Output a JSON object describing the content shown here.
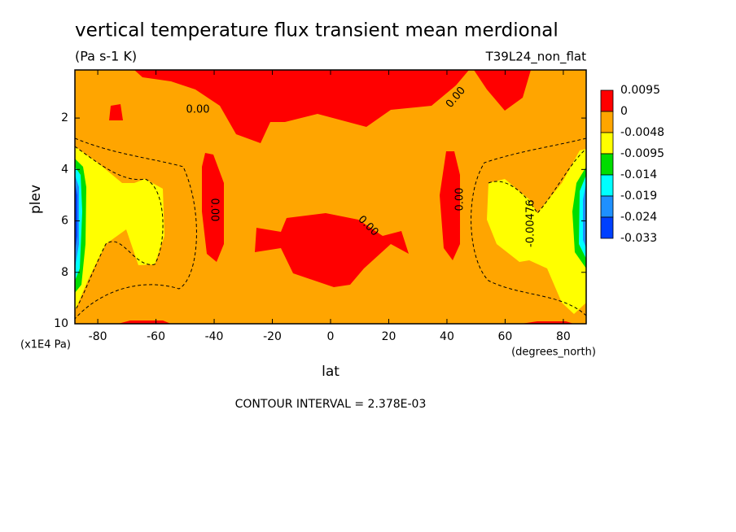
{
  "chart_data": {
    "type": "contour",
    "title": "vertical temperature flux transient mean merdional",
    "subtitle": "(Pa s-1 K)",
    "dataset": "T39L24_non_flat",
    "x_label": "lat",
    "x_units": "(degrees_north)",
    "y_label": "plev",
    "y_units": "(x1E4 Pa)",
    "footer": "CONTOUR INTERVAL = 2.378E-03",
    "xlim": [
      -87.86,
      87.86
    ],
    "xticks": [
      -80,
      -60,
      -40,
      -20,
      0,
      20,
      40,
      60,
      80
    ],
    "ylim": [
      0.13,
      10
    ],
    "yticks": [
      2,
      4,
      6,
      8,
      10
    ],
    "y_inverted": true,
    "colorbar": {
      "levels": [
        0.0095,
        0,
        -0.0048,
        -0.0095,
        -0.014,
        -0.019,
        -0.024,
        -0.033
      ],
      "colors": [
        "#ff0000",
        "#ffa500",
        "#ffff00",
        "#00dd00",
        "#00ffff",
        "#1e90ff",
        "#0040ff"
      ]
    },
    "annotations": [
      {
        "text": "0.00",
        "x": -45.6,
        "y": 1.68
      },
      {
        "text": "0.00",
        "x": -40,
        "y": 5.57
      },
      {
        "text": "0.00",
        "x": 12.9,
        "y": 6.2
      },
      {
        "text": "0.00",
        "x": 44.5,
        "y": 5.16
      },
      {
        "text": "0.00",
        "x": 43.1,
        "y": 1.2
      },
      {
        "text": "-0.00476",
        "x": 68.8,
        "y": 6.1
      }
    ]
  }
}
